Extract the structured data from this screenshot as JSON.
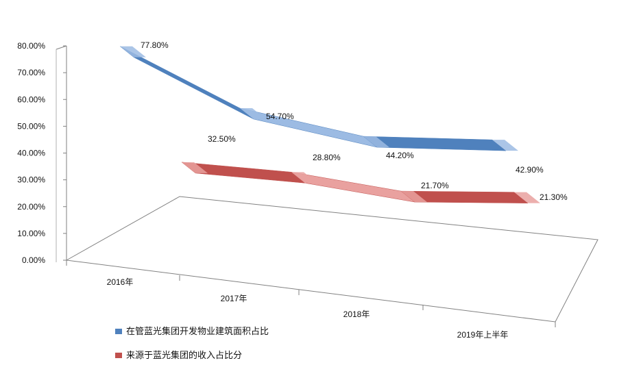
{
  "chart_data": {
    "type": "line",
    "style": "3d-ribbon",
    "categories": [
      "2016年",
      "2017年",
      "2018年",
      "2019年上半年"
    ],
    "series": [
      {
        "name": "在管蓝光集团开发物业建筑面积占比",
        "values": [
          77.8,
          54.7,
          44.2,
          42.9
        ],
        "labels": [
          "77.80%",
          "54.70%",
          "44.20%",
          "42.90%"
        ],
        "color": "#4f81bd",
        "color_light": "#9cbbe3"
      },
      {
        "name": "来源于蓝光集团的收入占比分",
        "values": [
          32.5,
          28.8,
          21.7,
          21.3
        ],
        "labels": [
          "32.50%",
          "28.80%",
          "21.70%",
          "21.30%"
        ],
        "color": "#c0504d",
        "color_light": "#e9a19f"
      }
    ],
    "yaxis_ticks": [
      "0.00%",
      "10.00%",
      "20.00%",
      "30.00%",
      "40.00%",
      "50.00%",
      "60.00%",
      "70.00%",
      "80.00%"
    ],
    "ylim": [
      0,
      80
    ],
    "grid": false,
    "legend_position": "bottom-left"
  }
}
